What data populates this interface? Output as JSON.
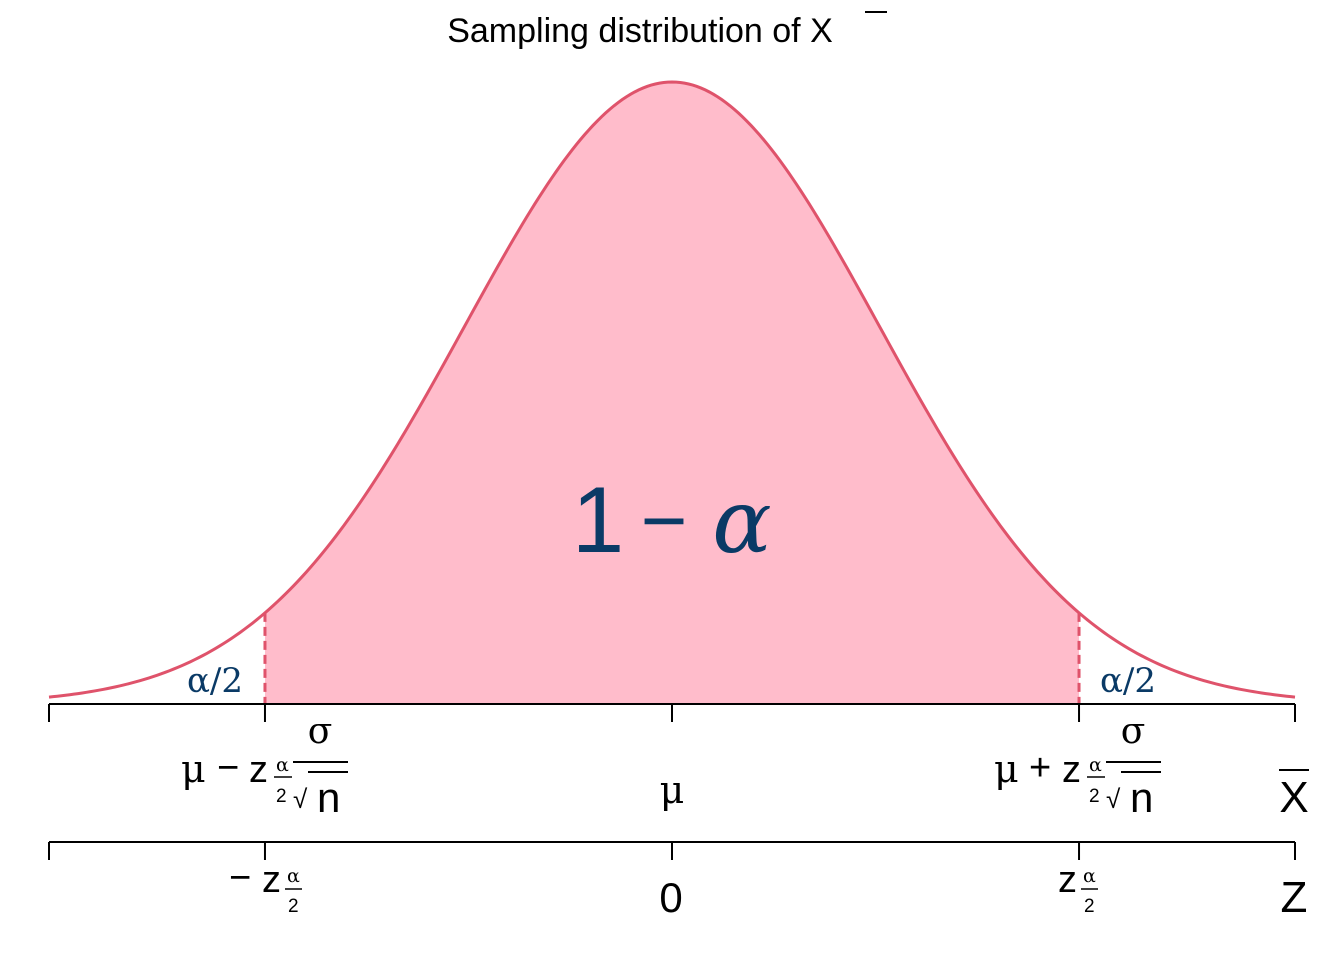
{
  "chart_data": {
    "type": "area",
    "title_prefix": "Sampling distribution of ",
    "title_symbol": "X",
    "distribution": "standard normal",
    "z_critical": 1.96,
    "xlim": [
      -3,
      3
    ],
    "regions": [
      {
        "name": "left tail",
        "from": -3,
        "to": -1.96,
        "shaded": false,
        "label": "α/2"
      },
      {
        "name": "center",
        "from": -1.96,
        "to": 1.96,
        "shaded": true,
        "label": "1 − α"
      },
      {
        "name": "right tail",
        "from": 1.96,
        "to": 3,
        "shaded": false,
        "label": "α/2"
      }
    ],
    "center_label": {
      "one": "1",
      "minus": "−",
      "alpha": "α"
    },
    "tail_label": "α/2",
    "xbar_axis": {
      "name": "X",
      "ticks": [
        -3,
        -1.96,
        0,
        1.96,
        3
      ],
      "labels": {
        "mu": "μ",
        "minus": "−",
        "plus": "+",
        "z": "z",
        "alpha": "α",
        "two": "2",
        "sigma": "σ",
        "n": "n",
        "sqrt": "√"
      }
    },
    "z_axis": {
      "name": "Z",
      "ticks": [
        -3,
        -1.96,
        0,
        1.96,
        3
      ],
      "center_label": "0"
    },
    "colors": {
      "curve": "#df536b",
      "fill": "#ffbccb",
      "labels": "#0a3a66",
      "axis": "#000000"
    }
  }
}
